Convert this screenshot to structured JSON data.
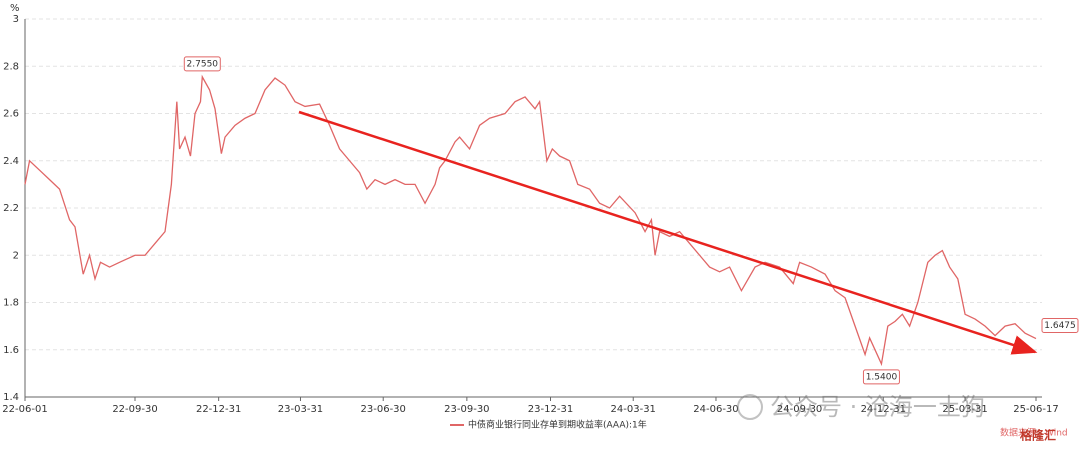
{
  "chart_data": {
    "type": "line",
    "y_unit": "%",
    "x": [
      "22-06-01",
      "22-06-06",
      "22-06-17",
      "22-06-28",
      "22-07-09",
      "22-07-20",
      "22-07-26",
      "22-08-04",
      "22-08-11",
      "22-08-17",
      "22-08-23",
      "22-09-02",
      "22-09-13",
      "22-09-30",
      "22-10-11",
      "22-10-22",
      "22-11-02",
      "22-11-09",
      "22-11-15",
      "22-11-18",
      "22-11-24",
      "22-11-30",
      "22-12-05",
      "22-12-11",
      "22-12-13",
      "22-12-21",
      "22-12-27",
      "23-01-03",
      "23-01-07",
      "23-01-18",
      "23-01-29",
      "23-02-09",
      "23-02-20",
      "23-03-03",
      "23-03-14",
      "23-03-25",
      "23-04-05",
      "23-04-21",
      "23-05-02",
      "23-05-13",
      "23-05-24",
      "23-06-04",
      "23-06-12",
      "23-06-21",
      "23-07-02",
      "23-07-13",
      "23-07-24",
      "23-08-04",
      "23-08-15",
      "23-08-26",
      "23-08-31",
      "23-09-06",
      "23-09-17",
      "23-09-22",
      "23-10-03",
      "23-10-14",
      "23-10-25",
      "23-11-11",
      "23-11-22",
      "23-12-03",
      "23-12-14",
      "23-12-19",
      "23-12-27",
      "24-01-02",
      "24-01-10",
      "24-01-21",
      "24-01-30",
      "24-02-12",
      "24-02-23",
      "24-03-05",
      "24-03-16",
      "24-04-02",
      "24-04-13",
      "24-04-20",
      "24-04-24",
      "24-04-29",
      "24-05-10",
      "24-05-21",
      "24-06-01",
      "24-06-12",
      "24-06-23",
      "24-07-04",
      "24-07-15",
      "24-07-28",
      "24-08-12",
      "24-08-23",
      "24-09-08",
      "24-09-23",
      "24-09-30",
      "24-10-13",
      "24-10-28",
      "24-11-08",
      "24-11-19",
      "24-11-30",
      "24-12-11",
      "24-12-16",
      "24-12-29",
      "25-01-05",
      "25-01-13",
      "25-01-21",
      "25-01-29",
      "25-02-07",
      "25-02-18",
      "25-02-26",
      "25-03-06",
      "25-03-14",
      "25-03-23",
      "25-03-31",
      "25-04-11",
      "25-04-22",
      "25-05-03",
      "25-05-14",
      "25-05-25",
      "25-06-05",
      "25-06-17"
    ],
    "series": [
      {
        "name": "中债商业银行同业存单到期收益率(AAA):1年",
        "color": "#e06666",
        "values": [
          2.3,
          2.4,
          2.36,
          2.32,
          2.28,
          2.15,
          2.12,
          1.92,
          2.0,
          1.9,
          1.97,
          1.95,
          1.97,
          2.0,
          2.0,
          2.05,
          2.1,
          2.3,
          2.65,
          2.45,
          2.5,
          2.42,
          2.6,
          2.65,
          2.755,
          2.7,
          2.62,
          2.43,
          2.5,
          2.55,
          2.58,
          2.6,
          2.7,
          2.75,
          2.72,
          2.65,
          2.63,
          2.64,
          2.55,
          2.45,
          2.4,
          2.35,
          2.28,
          2.32,
          2.3,
          2.32,
          2.3,
          2.3,
          2.22,
          2.3,
          2.37,
          2.4,
          2.48,
          2.5,
          2.45,
          2.55,
          2.58,
          2.6,
          2.65,
          2.67,
          2.62,
          2.65,
          2.4,
          2.45,
          2.42,
          2.4,
          2.3,
          2.28,
          2.22,
          2.2,
          2.25,
          2.18,
          2.1,
          2.15,
          2.0,
          2.1,
          2.08,
          2.1,
          2.05,
          2.0,
          1.95,
          1.93,
          1.95,
          1.85,
          1.95,
          1.97,
          1.95,
          1.88,
          1.97,
          1.95,
          1.92,
          1.85,
          1.82,
          1.7,
          1.58,
          1.65,
          1.54,
          1.7,
          1.72,
          1.75,
          1.7,
          1.8,
          1.97,
          2.0,
          2.02,
          1.95,
          1.9,
          1.75,
          1.73,
          1.7,
          1.66,
          1.7,
          1.71,
          1.67,
          1.6475
        ]
      }
    ],
    "annotations": [
      {
        "x": "22-12-13",
        "value": 2.755,
        "label": "2.7550"
      },
      {
        "x": "24-12-29",
        "value": 1.54,
        "label": "1.5400"
      },
      {
        "x": "25-06-17",
        "value": 1.6475,
        "label": "1.6475"
      }
    ],
    "xlim": [
      "22-06-01",
      "25-06-17"
    ],
    "xticks": [
      "22-06-01",
      "22-09-30",
      "22-12-31",
      "23-03-31",
      "23-06-30",
      "23-09-30",
      "23-12-31",
      "24-03-31",
      "24-06-30",
      "24-09-30",
      "24-12-31",
      "25-03-31",
      "25-06-17"
    ],
    "ylim": [
      1.4,
      3
    ],
    "yticks": [
      1.4,
      1.6,
      1.8,
      2,
      2.2,
      2.4,
      2.6,
      2.8,
      3
    ],
    "grid": true,
    "legend": "bottom"
  },
  "watermark": "公众号 · 沧海一土狗",
  "source": "数据来源：Wind",
  "logo": "格隆汇"
}
